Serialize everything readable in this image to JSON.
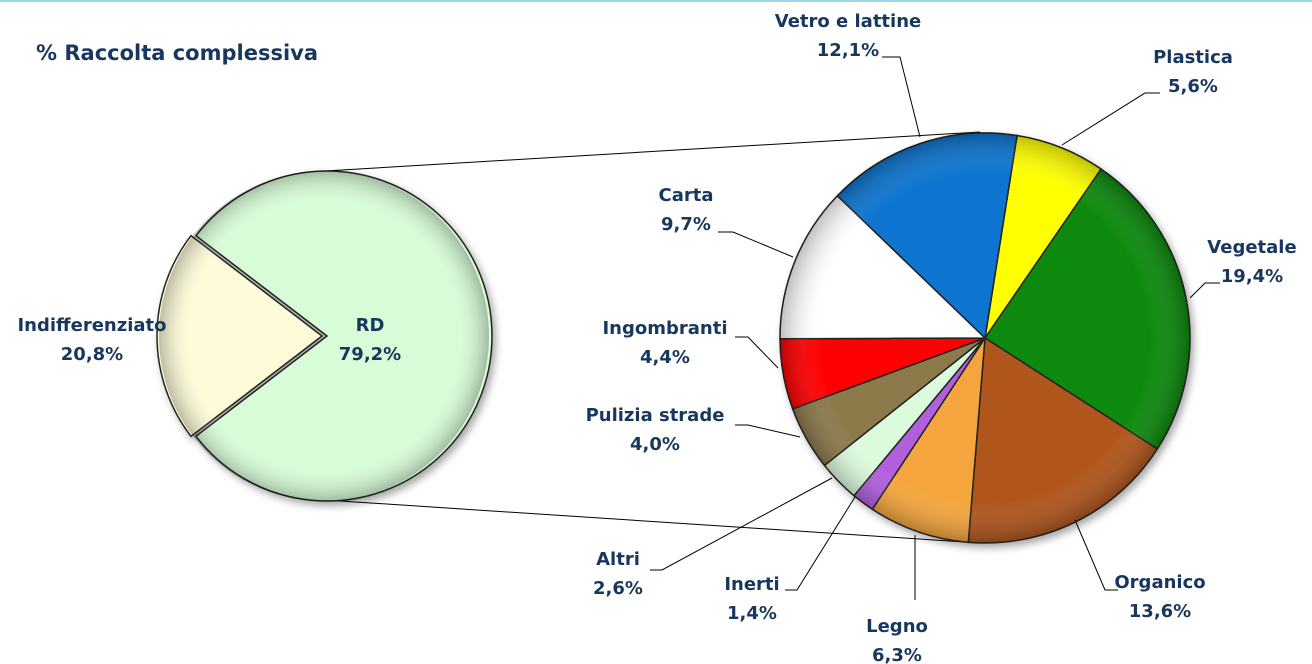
{
  "chart_data": [
    {
      "type": "pie",
      "title": "% Raccolta complessiva",
      "categories": [
        "Indifferenziato",
        "RD"
      ],
      "values": [
        20.8,
        79.2
      ],
      "value_labels": [
        "20,8%",
        "79,2%"
      ],
      "colors": [
        "#fdfbd8",
        "#d8fcd8"
      ]
    },
    {
      "type": "pie",
      "categories": [
        "Plastica",
        "Vegetale",
        "Organico",
        "Legno",
        "Inerti",
        "Altri",
        "Pulizia strade",
        "Ingombranti",
        "Carta",
        "Vetro e lattine"
      ],
      "values": [
        5.6,
        19.4,
        13.6,
        6.3,
        1.4,
        2.6,
        4.0,
        4.4,
        9.7,
        12.1
      ],
      "value_labels": [
        "5,6%",
        "19,4%",
        "13,6%",
        "6,3%",
        "1,4%",
        "2,6%",
        "4,0%",
        "4,4%",
        "9,7%",
        "12,1%"
      ],
      "colors": [
        "#ffff00",
        "#0b8a0b",
        "#b0561e",
        "#f4a53e",
        "#b25fdc",
        "#dcfadc",
        "#8c7a4c",
        "#ff0000",
        "#ffffff",
        "#0a74cf"
      ]
    }
  ]
}
